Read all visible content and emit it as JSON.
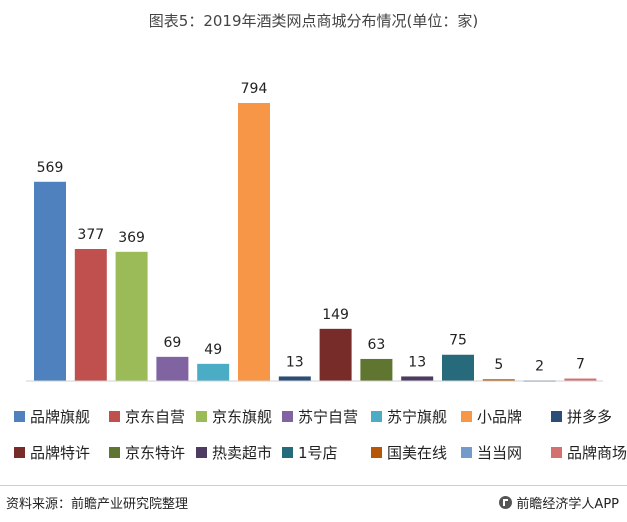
{
  "chart_data": {
    "type": "bar",
    "title": "图表5：2019年酒类网点商城分布情况(单位：家)",
    "categories": [
      "品牌旗舰",
      "京东自营",
      "京东旗舰",
      "苏宁自营",
      "苏宁旗舰",
      "小品牌",
      "拼多多",
      "品牌特许",
      "京东特许",
      "热卖超市",
      "1号店",
      "国美在线",
      "当当网",
      "品牌商场"
    ],
    "values": [
      569,
      377,
      369,
      69,
      49,
      794,
      13,
      149,
      63,
      13,
      75,
      5,
      2,
      7
    ],
    "colors": [
      "#4e81bd",
      "#c0504d",
      "#9bbb59",
      "#8064a2",
      "#4bacc6",
      "#f79646",
      "#2c4d75",
      "#772c2a",
      "#5f7530",
      "#4d3b62",
      "#276a7c",
      "#b65708",
      "#729aca",
      "#d3716e"
    ],
    "xlabel": "",
    "ylabel": "",
    "ylim": [
      0,
      800
    ],
    "grid": false,
    "legend_position": "bottom"
  },
  "footer": {
    "source": "资料来源：前瞻产业研究院整理",
    "brand": "前瞻经济学人APP",
    "brand_icon": "qianzhan-logo-icon"
  }
}
